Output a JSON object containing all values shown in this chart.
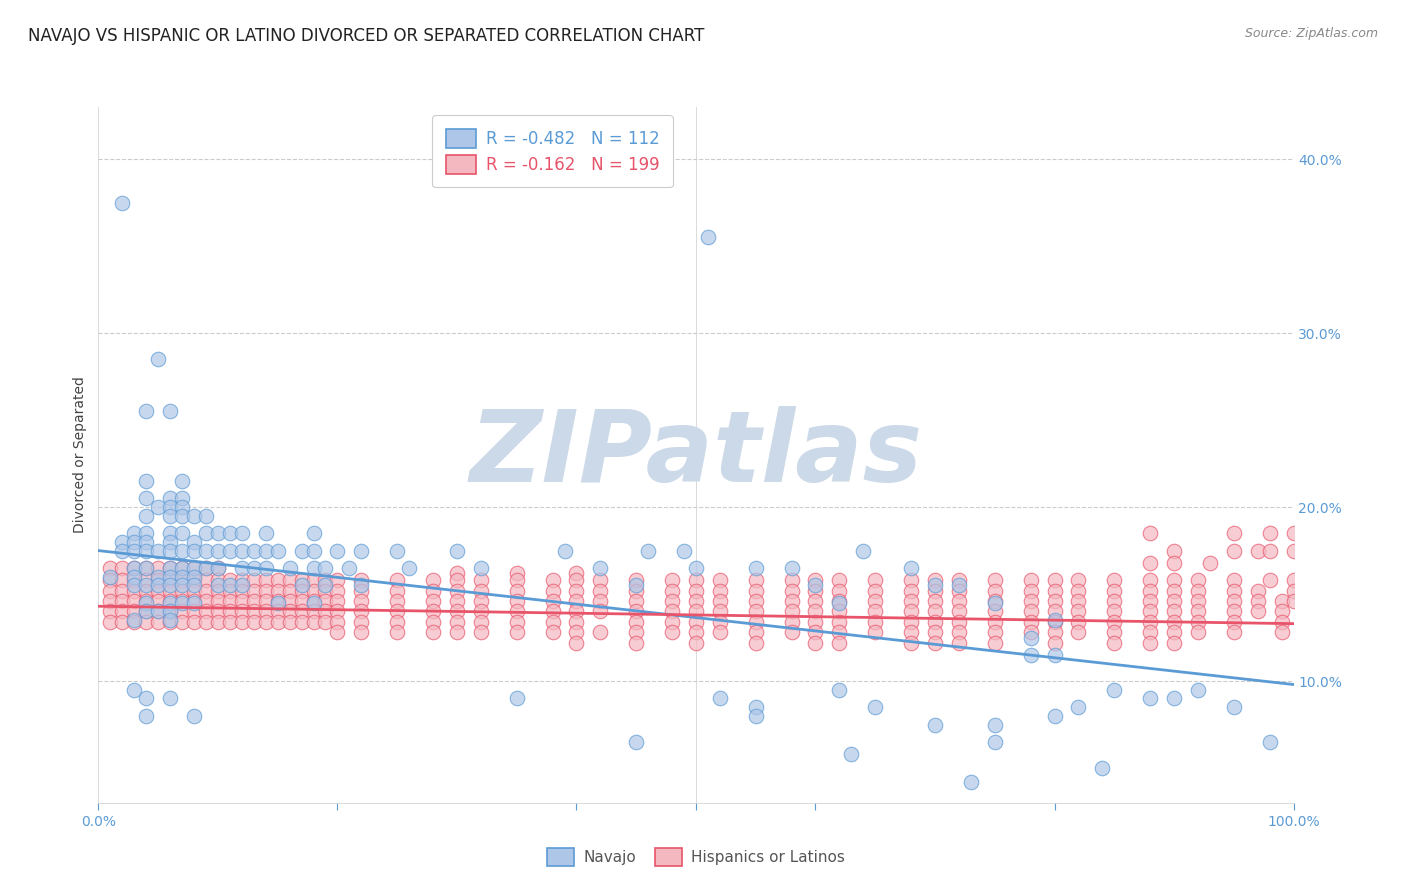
{
  "title": "NAVAJO VS HISPANIC OR LATINO DIVORCED OR SEPARATED CORRELATION CHART",
  "source": "Source: ZipAtlas.com",
  "ylabel": "Divorced or Separated",
  "xlim": [
    0.0,
    1.0
  ],
  "ylim": [
    0.03,
    0.43
  ],
  "legend_entries": [
    {
      "label": "Navajo",
      "R": "-0.482",
      "N": "112",
      "fill": "#aec6e8",
      "edge": "#5b9bd5"
    },
    {
      "label": "Hispanics or Latinos",
      "R": "-0.162",
      "N": "199",
      "fill": "#f4b8c1",
      "edge": "#e8546a"
    }
  ],
  "watermark": "ZIPatlas",
  "background_color": "#ffffff",
  "navajo_color": "#5b9bd5",
  "navajo_fill": "#aec6e8",
  "hispanic_color": "#e8546a",
  "hispanic_fill": "#f4b8c1",
  "watermark_color": "#ccd9e8",
  "navajo_line": {
    "x0": 0.0,
    "y0": 0.175,
    "x1": 1.0,
    "y1": 0.098
  },
  "hispanic_line": {
    "x0": 0.0,
    "y0": 0.143,
    "x1": 1.0,
    "y1": 0.133
  },
  "yticks": [
    0.1,
    0.2,
    0.3,
    0.4
  ],
  "xticks": [
    0.0,
    0.2,
    0.4,
    0.5,
    0.6,
    0.8,
    1.0
  ],
  "xtick_labels": [
    "0.0%",
    "",
    "",
    "",
    "",
    "",
    "100.0%"
  ],
  "navajo_points": [
    [
      0.02,
      0.375
    ],
    [
      0.51,
      0.355
    ],
    [
      0.05,
      0.285
    ],
    [
      0.04,
      0.255
    ],
    [
      0.06,
      0.255
    ],
    [
      0.04,
      0.215
    ],
    [
      0.07,
      0.215
    ],
    [
      0.04,
      0.205
    ],
    [
      0.06,
      0.205
    ],
    [
      0.07,
      0.205
    ],
    [
      0.05,
      0.2
    ],
    [
      0.06,
      0.2
    ],
    [
      0.07,
      0.2
    ],
    [
      0.04,
      0.195
    ],
    [
      0.06,
      0.195
    ],
    [
      0.07,
      0.195
    ],
    [
      0.08,
      0.195
    ],
    [
      0.09,
      0.195
    ],
    [
      0.03,
      0.185
    ],
    [
      0.04,
      0.185
    ],
    [
      0.06,
      0.185
    ],
    [
      0.07,
      0.185
    ],
    [
      0.09,
      0.185
    ],
    [
      0.1,
      0.185
    ],
    [
      0.11,
      0.185
    ],
    [
      0.12,
      0.185
    ],
    [
      0.14,
      0.185
    ],
    [
      0.18,
      0.185
    ],
    [
      0.02,
      0.18
    ],
    [
      0.03,
      0.18
    ],
    [
      0.04,
      0.18
    ],
    [
      0.06,
      0.18
    ],
    [
      0.08,
      0.18
    ],
    [
      0.02,
      0.175
    ],
    [
      0.03,
      0.175
    ],
    [
      0.04,
      0.175
    ],
    [
      0.05,
      0.175
    ],
    [
      0.06,
      0.175
    ],
    [
      0.07,
      0.175
    ],
    [
      0.08,
      0.175
    ],
    [
      0.09,
      0.175
    ],
    [
      0.1,
      0.175
    ],
    [
      0.11,
      0.175
    ],
    [
      0.12,
      0.175
    ],
    [
      0.13,
      0.175
    ],
    [
      0.14,
      0.175
    ],
    [
      0.15,
      0.175
    ],
    [
      0.17,
      0.175
    ],
    [
      0.18,
      0.175
    ],
    [
      0.2,
      0.175
    ],
    [
      0.22,
      0.175
    ],
    [
      0.25,
      0.175
    ],
    [
      0.3,
      0.175
    ],
    [
      0.39,
      0.175
    ],
    [
      0.46,
      0.175
    ],
    [
      0.49,
      0.175
    ],
    [
      0.64,
      0.175
    ],
    [
      0.03,
      0.165
    ],
    [
      0.04,
      0.165
    ],
    [
      0.06,
      0.165
    ],
    [
      0.07,
      0.165
    ],
    [
      0.08,
      0.165
    ],
    [
      0.09,
      0.165
    ],
    [
      0.1,
      0.165
    ],
    [
      0.12,
      0.165
    ],
    [
      0.13,
      0.165
    ],
    [
      0.14,
      0.165
    ],
    [
      0.16,
      0.165
    ],
    [
      0.18,
      0.165
    ],
    [
      0.19,
      0.165
    ],
    [
      0.21,
      0.165
    ],
    [
      0.26,
      0.165
    ],
    [
      0.32,
      0.165
    ],
    [
      0.42,
      0.165
    ],
    [
      0.5,
      0.165
    ],
    [
      0.55,
      0.165
    ],
    [
      0.58,
      0.165
    ],
    [
      0.68,
      0.165
    ],
    [
      0.01,
      0.16
    ],
    [
      0.03,
      0.16
    ],
    [
      0.05,
      0.16
    ],
    [
      0.06,
      0.16
    ],
    [
      0.07,
      0.16
    ],
    [
      0.08,
      0.16
    ],
    [
      0.03,
      0.155
    ],
    [
      0.04,
      0.155
    ],
    [
      0.05,
      0.155
    ],
    [
      0.06,
      0.155
    ],
    [
      0.07,
      0.155
    ],
    [
      0.08,
      0.155
    ],
    [
      0.1,
      0.155
    ],
    [
      0.11,
      0.155
    ],
    [
      0.12,
      0.155
    ],
    [
      0.17,
      0.155
    ],
    [
      0.19,
      0.155
    ],
    [
      0.22,
      0.155
    ],
    [
      0.45,
      0.155
    ],
    [
      0.6,
      0.155
    ],
    [
      0.7,
      0.155
    ],
    [
      0.72,
      0.155
    ],
    [
      0.04,
      0.145
    ],
    [
      0.06,
      0.145
    ],
    [
      0.07,
      0.145
    ],
    [
      0.08,
      0.145
    ],
    [
      0.15,
      0.145
    ],
    [
      0.18,
      0.145
    ],
    [
      0.62,
      0.145
    ],
    [
      0.75,
      0.145
    ],
    [
      0.04,
      0.14
    ],
    [
      0.05,
      0.14
    ],
    [
      0.06,
      0.14
    ],
    [
      0.03,
      0.135
    ],
    [
      0.06,
      0.135
    ],
    [
      0.8,
      0.135
    ],
    [
      0.78,
      0.125
    ],
    [
      0.78,
      0.115
    ],
    [
      0.8,
      0.115
    ],
    [
      0.03,
      0.095
    ],
    [
      0.62,
      0.095
    ],
    [
      0.85,
      0.095
    ],
    [
      0.92,
      0.095
    ],
    [
      0.04,
      0.09
    ],
    [
      0.06,
      0.09
    ],
    [
      0.35,
      0.09
    ],
    [
      0.52,
      0.09
    ],
    [
      0.88,
      0.09
    ],
    [
      0.9,
      0.09
    ],
    [
      0.55,
      0.085
    ],
    [
      0.65,
      0.085
    ],
    [
      0.82,
      0.085
    ],
    [
      0.95,
      0.085
    ],
    [
      0.04,
      0.08
    ],
    [
      0.08,
      0.08
    ],
    [
      0.55,
      0.08
    ],
    [
      0.8,
      0.08
    ],
    [
      0.75,
      0.075
    ],
    [
      0.7,
      0.075
    ],
    [
      0.45,
      0.065
    ],
    [
      0.75,
      0.065
    ],
    [
      0.98,
      0.065
    ],
    [
      0.63,
      0.058
    ],
    [
      0.84,
      0.05
    ],
    [
      0.73,
      0.042
    ]
  ],
  "hispanic_points": [
    [
      0.88,
      0.185
    ],
    [
      0.95,
      0.185
    ],
    [
      0.98,
      0.185
    ],
    [
      1.0,
      0.185
    ],
    [
      0.9,
      0.175
    ],
    [
      0.95,
      0.175
    ],
    [
      0.97,
      0.175
    ],
    [
      0.98,
      0.175
    ],
    [
      1.0,
      0.175
    ],
    [
      0.88,
      0.168
    ],
    [
      0.9,
      0.168
    ],
    [
      0.93,
      0.168
    ],
    [
      0.01,
      0.165
    ],
    [
      0.02,
      0.165
    ],
    [
      0.03,
      0.165
    ],
    [
      0.04,
      0.165
    ],
    [
      0.05,
      0.165
    ],
    [
      0.06,
      0.165
    ],
    [
      0.07,
      0.165
    ],
    [
      0.08,
      0.165
    ],
    [
      0.09,
      0.165
    ],
    [
      0.1,
      0.165
    ],
    [
      0.3,
      0.162
    ],
    [
      0.35,
      0.162
    ],
    [
      0.4,
      0.162
    ],
    [
      0.01,
      0.158
    ],
    [
      0.02,
      0.158
    ],
    [
      0.03,
      0.158
    ],
    [
      0.04,
      0.158
    ],
    [
      0.05,
      0.158
    ],
    [
      0.06,
      0.158
    ],
    [
      0.07,
      0.158
    ],
    [
      0.08,
      0.158
    ],
    [
      0.09,
      0.158
    ],
    [
      0.1,
      0.158
    ],
    [
      0.11,
      0.158
    ],
    [
      0.12,
      0.158
    ],
    [
      0.13,
      0.158
    ],
    [
      0.14,
      0.158
    ],
    [
      0.15,
      0.158
    ],
    [
      0.16,
      0.158
    ],
    [
      0.17,
      0.158
    ],
    [
      0.18,
      0.158
    ],
    [
      0.19,
      0.158
    ],
    [
      0.2,
      0.158
    ],
    [
      0.22,
      0.158
    ],
    [
      0.25,
      0.158
    ],
    [
      0.28,
      0.158
    ],
    [
      0.3,
      0.158
    ],
    [
      0.32,
      0.158
    ],
    [
      0.35,
      0.158
    ],
    [
      0.38,
      0.158
    ],
    [
      0.4,
      0.158
    ],
    [
      0.42,
      0.158
    ],
    [
      0.45,
      0.158
    ],
    [
      0.48,
      0.158
    ],
    [
      0.5,
      0.158
    ],
    [
      0.52,
      0.158
    ],
    [
      0.55,
      0.158
    ],
    [
      0.58,
      0.158
    ],
    [
      0.6,
      0.158
    ],
    [
      0.62,
      0.158
    ],
    [
      0.65,
      0.158
    ],
    [
      0.68,
      0.158
    ],
    [
      0.7,
      0.158
    ],
    [
      0.72,
      0.158
    ],
    [
      0.75,
      0.158
    ],
    [
      0.78,
      0.158
    ],
    [
      0.8,
      0.158
    ],
    [
      0.82,
      0.158
    ],
    [
      0.85,
      0.158
    ],
    [
      0.88,
      0.158
    ],
    [
      0.9,
      0.158
    ],
    [
      0.92,
      0.158
    ],
    [
      0.95,
      0.158
    ],
    [
      0.98,
      0.158
    ],
    [
      1.0,
      0.158
    ],
    [
      0.01,
      0.152
    ],
    [
      0.02,
      0.152
    ],
    [
      0.03,
      0.152
    ],
    [
      0.04,
      0.152
    ],
    [
      0.05,
      0.152
    ],
    [
      0.06,
      0.152
    ],
    [
      0.07,
      0.152
    ],
    [
      0.08,
      0.152
    ],
    [
      0.09,
      0.152
    ],
    [
      0.1,
      0.152
    ],
    [
      0.11,
      0.152
    ],
    [
      0.12,
      0.152
    ],
    [
      0.13,
      0.152
    ],
    [
      0.14,
      0.152
    ],
    [
      0.15,
      0.152
    ],
    [
      0.16,
      0.152
    ],
    [
      0.17,
      0.152
    ],
    [
      0.18,
      0.152
    ],
    [
      0.19,
      0.152
    ],
    [
      0.2,
      0.152
    ],
    [
      0.22,
      0.152
    ],
    [
      0.25,
      0.152
    ],
    [
      0.28,
      0.152
    ],
    [
      0.3,
      0.152
    ],
    [
      0.32,
      0.152
    ],
    [
      0.35,
      0.152
    ],
    [
      0.38,
      0.152
    ],
    [
      0.4,
      0.152
    ],
    [
      0.42,
      0.152
    ],
    [
      0.45,
      0.152
    ],
    [
      0.48,
      0.152
    ],
    [
      0.5,
      0.152
    ],
    [
      0.52,
      0.152
    ],
    [
      0.55,
      0.152
    ],
    [
      0.58,
      0.152
    ],
    [
      0.6,
      0.152
    ],
    [
      0.62,
      0.152
    ],
    [
      0.65,
      0.152
    ],
    [
      0.68,
      0.152
    ],
    [
      0.7,
      0.152
    ],
    [
      0.72,
      0.152
    ],
    [
      0.75,
      0.152
    ],
    [
      0.78,
      0.152
    ],
    [
      0.8,
      0.152
    ],
    [
      0.82,
      0.152
    ],
    [
      0.85,
      0.152
    ],
    [
      0.88,
      0.152
    ],
    [
      0.9,
      0.152
    ],
    [
      0.92,
      0.152
    ],
    [
      0.95,
      0.152
    ],
    [
      0.97,
      0.152
    ],
    [
      1.0,
      0.152
    ],
    [
      0.01,
      0.146
    ],
    [
      0.02,
      0.146
    ],
    [
      0.03,
      0.146
    ],
    [
      0.04,
      0.146
    ],
    [
      0.05,
      0.146
    ],
    [
      0.06,
      0.146
    ],
    [
      0.07,
      0.146
    ],
    [
      0.08,
      0.146
    ],
    [
      0.09,
      0.146
    ],
    [
      0.1,
      0.146
    ],
    [
      0.11,
      0.146
    ],
    [
      0.12,
      0.146
    ],
    [
      0.13,
      0.146
    ],
    [
      0.14,
      0.146
    ],
    [
      0.15,
      0.146
    ],
    [
      0.16,
      0.146
    ],
    [
      0.17,
      0.146
    ],
    [
      0.18,
      0.146
    ],
    [
      0.19,
      0.146
    ],
    [
      0.2,
      0.146
    ],
    [
      0.22,
      0.146
    ],
    [
      0.25,
      0.146
    ],
    [
      0.28,
      0.146
    ],
    [
      0.3,
      0.146
    ],
    [
      0.32,
      0.146
    ],
    [
      0.35,
      0.146
    ],
    [
      0.38,
      0.146
    ],
    [
      0.4,
      0.146
    ],
    [
      0.42,
      0.146
    ],
    [
      0.45,
      0.146
    ],
    [
      0.48,
      0.146
    ],
    [
      0.5,
      0.146
    ],
    [
      0.52,
      0.146
    ],
    [
      0.55,
      0.146
    ],
    [
      0.58,
      0.146
    ],
    [
      0.6,
      0.146
    ],
    [
      0.62,
      0.146
    ],
    [
      0.65,
      0.146
    ],
    [
      0.68,
      0.146
    ],
    [
      0.7,
      0.146
    ],
    [
      0.72,
      0.146
    ],
    [
      0.75,
      0.146
    ],
    [
      0.78,
      0.146
    ],
    [
      0.8,
      0.146
    ],
    [
      0.82,
      0.146
    ],
    [
      0.85,
      0.146
    ],
    [
      0.88,
      0.146
    ],
    [
      0.9,
      0.146
    ],
    [
      0.92,
      0.146
    ],
    [
      0.95,
      0.146
    ],
    [
      0.97,
      0.146
    ],
    [
      0.99,
      0.146
    ],
    [
      1.0,
      0.146
    ],
    [
      0.01,
      0.14
    ],
    [
      0.02,
      0.14
    ],
    [
      0.03,
      0.14
    ],
    [
      0.04,
      0.14
    ],
    [
      0.05,
      0.14
    ],
    [
      0.06,
      0.14
    ],
    [
      0.07,
      0.14
    ],
    [
      0.08,
      0.14
    ],
    [
      0.09,
      0.14
    ],
    [
      0.1,
      0.14
    ],
    [
      0.11,
      0.14
    ],
    [
      0.12,
      0.14
    ],
    [
      0.13,
      0.14
    ],
    [
      0.14,
      0.14
    ],
    [
      0.15,
      0.14
    ],
    [
      0.16,
      0.14
    ],
    [
      0.17,
      0.14
    ],
    [
      0.18,
      0.14
    ],
    [
      0.19,
      0.14
    ],
    [
      0.2,
      0.14
    ],
    [
      0.22,
      0.14
    ],
    [
      0.25,
      0.14
    ],
    [
      0.28,
      0.14
    ],
    [
      0.3,
      0.14
    ],
    [
      0.32,
      0.14
    ],
    [
      0.35,
      0.14
    ],
    [
      0.38,
      0.14
    ],
    [
      0.4,
      0.14
    ],
    [
      0.42,
      0.14
    ],
    [
      0.45,
      0.14
    ],
    [
      0.48,
      0.14
    ],
    [
      0.5,
      0.14
    ],
    [
      0.52,
      0.14
    ],
    [
      0.55,
      0.14
    ],
    [
      0.58,
      0.14
    ],
    [
      0.6,
      0.14
    ],
    [
      0.62,
      0.14
    ],
    [
      0.65,
      0.14
    ],
    [
      0.68,
      0.14
    ],
    [
      0.7,
      0.14
    ],
    [
      0.72,
      0.14
    ],
    [
      0.75,
      0.14
    ],
    [
      0.78,
      0.14
    ],
    [
      0.8,
      0.14
    ],
    [
      0.82,
      0.14
    ],
    [
      0.85,
      0.14
    ],
    [
      0.88,
      0.14
    ],
    [
      0.9,
      0.14
    ],
    [
      0.92,
      0.14
    ],
    [
      0.95,
      0.14
    ],
    [
      0.97,
      0.14
    ],
    [
      0.99,
      0.14
    ],
    [
      0.01,
      0.134
    ],
    [
      0.02,
      0.134
    ],
    [
      0.03,
      0.134
    ],
    [
      0.04,
      0.134
    ],
    [
      0.05,
      0.134
    ],
    [
      0.06,
      0.134
    ],
    [
      0.07,
      0.134
    ],
    [
      0.08,
      0.134
    ],
    [
      0.09,
      0.134
    ],
    [
      0.1,
      0.134
    ],
    [
      0.11,
      0.134
    ],
    [
      0.12,
      0.134
    ],
    [
      0.13,
      0.134
    ],
    [
      0.14,
      0.134
    ],
    [
      0.15,
      0.134
    ],
    [
      0.16,
      0.134
    ],
    [
      0.17,
      0.134
    ],
    [
      0.18,
      0.134
    ],
    [
      0.19,
      0.134
    ],
    [
      0.2,
      0.134
    ],
    [
      0.22,
      0.134
    ],
    [
      0.25,
      0.134
    ],
    [
      0.28,
      0.134
    ],
    [
      0.3,
      0.134
    ],
    [
      0.32,
      0.134
    ],
    [
      0.35,
      0.134
    ],
    [
      0.38,
      0.134
    ],
    [
      0.4,
      0.134
    ],
    [
      0.45,
      0.134
    ],
    [
      0.48,
      0.134
    ],
    [
      0.5,
      0.134
    ],
    [
      0.52,
      0.134
    ],
    [
      0.55,
      0.134
    ],
    [
      0.58,
      0.134
    ],
    [
      0.6,
      0.134
    ],
    [
      0.62,
      0.134
    ],
    [
      0.65,
      0.134
    ],
    [
      0.68,
      0.134
    ],
    [
      0.7,
      0.134
    ],
    [
      0.72,
      0.134
    ],
    [
      0.75,
      0.134
    ],
    [
      0.78,
      0.134
    ],
    [
      0.8,
      0.134
    ],
    [
      0.82,
      0.134
    ],
    [
      0.85,
      0.134
    ],
    [
      0.88,
      0.134
    ],
    [
      0.9,
      0.134
    ],
    [
      0.92,
      0.134
    ],
    [
      0.95,
      0.134
    ],
    [
      0.99,
      0.134
    ],
    [
      0.2,
      0.128
    ],
    [
      0.22,
      0.128
    ],
    [
      0.25,
      0.128
    ],
    [
      0.28,
      0.128
    ],
    [
      0.3,
      0.128
    ],
    [
      0.32,
      0.128
    ],
    [
      0.35,
      0.128
    ],
    [
      0.38,
      0.128
    ],
    [
      0.4,
      0.128
    ],
    [
      0.42,
      0.128
    ],
    [
      0.45,
      0.128
    ],
    [
      0.48,
      0.128
    ],
    [
      0.5,
      0.128
    ],
    [
      0.52,
      0.128
    ],
    [
      0.55,
      0.128
    ],
    [
      0.58,
      0.128
    ],
    [
      0.6,
      0.128
    ],
    [
      0.62,
      0.128
    ],
    [
      0.65,
      0.128
    ],
    [
      0.68,
      0.128
    ],
    [
      0.7,
      0.128
    ],
    [
      0.72,
      0.128
    ],
    [
      0.75,
      0.128
    ],
    [
      0.78,
      0.128
    ],
    [
      0.8,
      0.128
    ],
    [
      0.82,
      0.128
    ],
    [
      0.85,
      0.128
    ],
    [
      0.88,
      0.128
    ],
    [
      0.9,
      0.128
    ],
    [
      0.92,
      0.128
    ],
    [
      0.95,
      0.128
    ],
    [
      0.99,
      0.128
    ],
    [
      0.4,
      0.122
    ],
    [
      0.45,
      0.122
    ],
    [
      0.5,
      0.122
    ],
    [
      0.55,
      0.122
    ],
    [
      0.6,
      0.122
    ],
    [
      0.62,
      0.122
    ],
    [
      0.68,
      0.122
    ],
    [
      0.7,
      0.122
    ],
    [
      0.72,
      0.122
    ],
    [
      0.75,
      0.122
    ],
    [
      0.8,
      0.122
    ],
    [
      0.85,
      0.122
    ],
    [
      0.88,
      0.122
    ],
    [
      0.9,
      0.122
    ]
  ]
}
